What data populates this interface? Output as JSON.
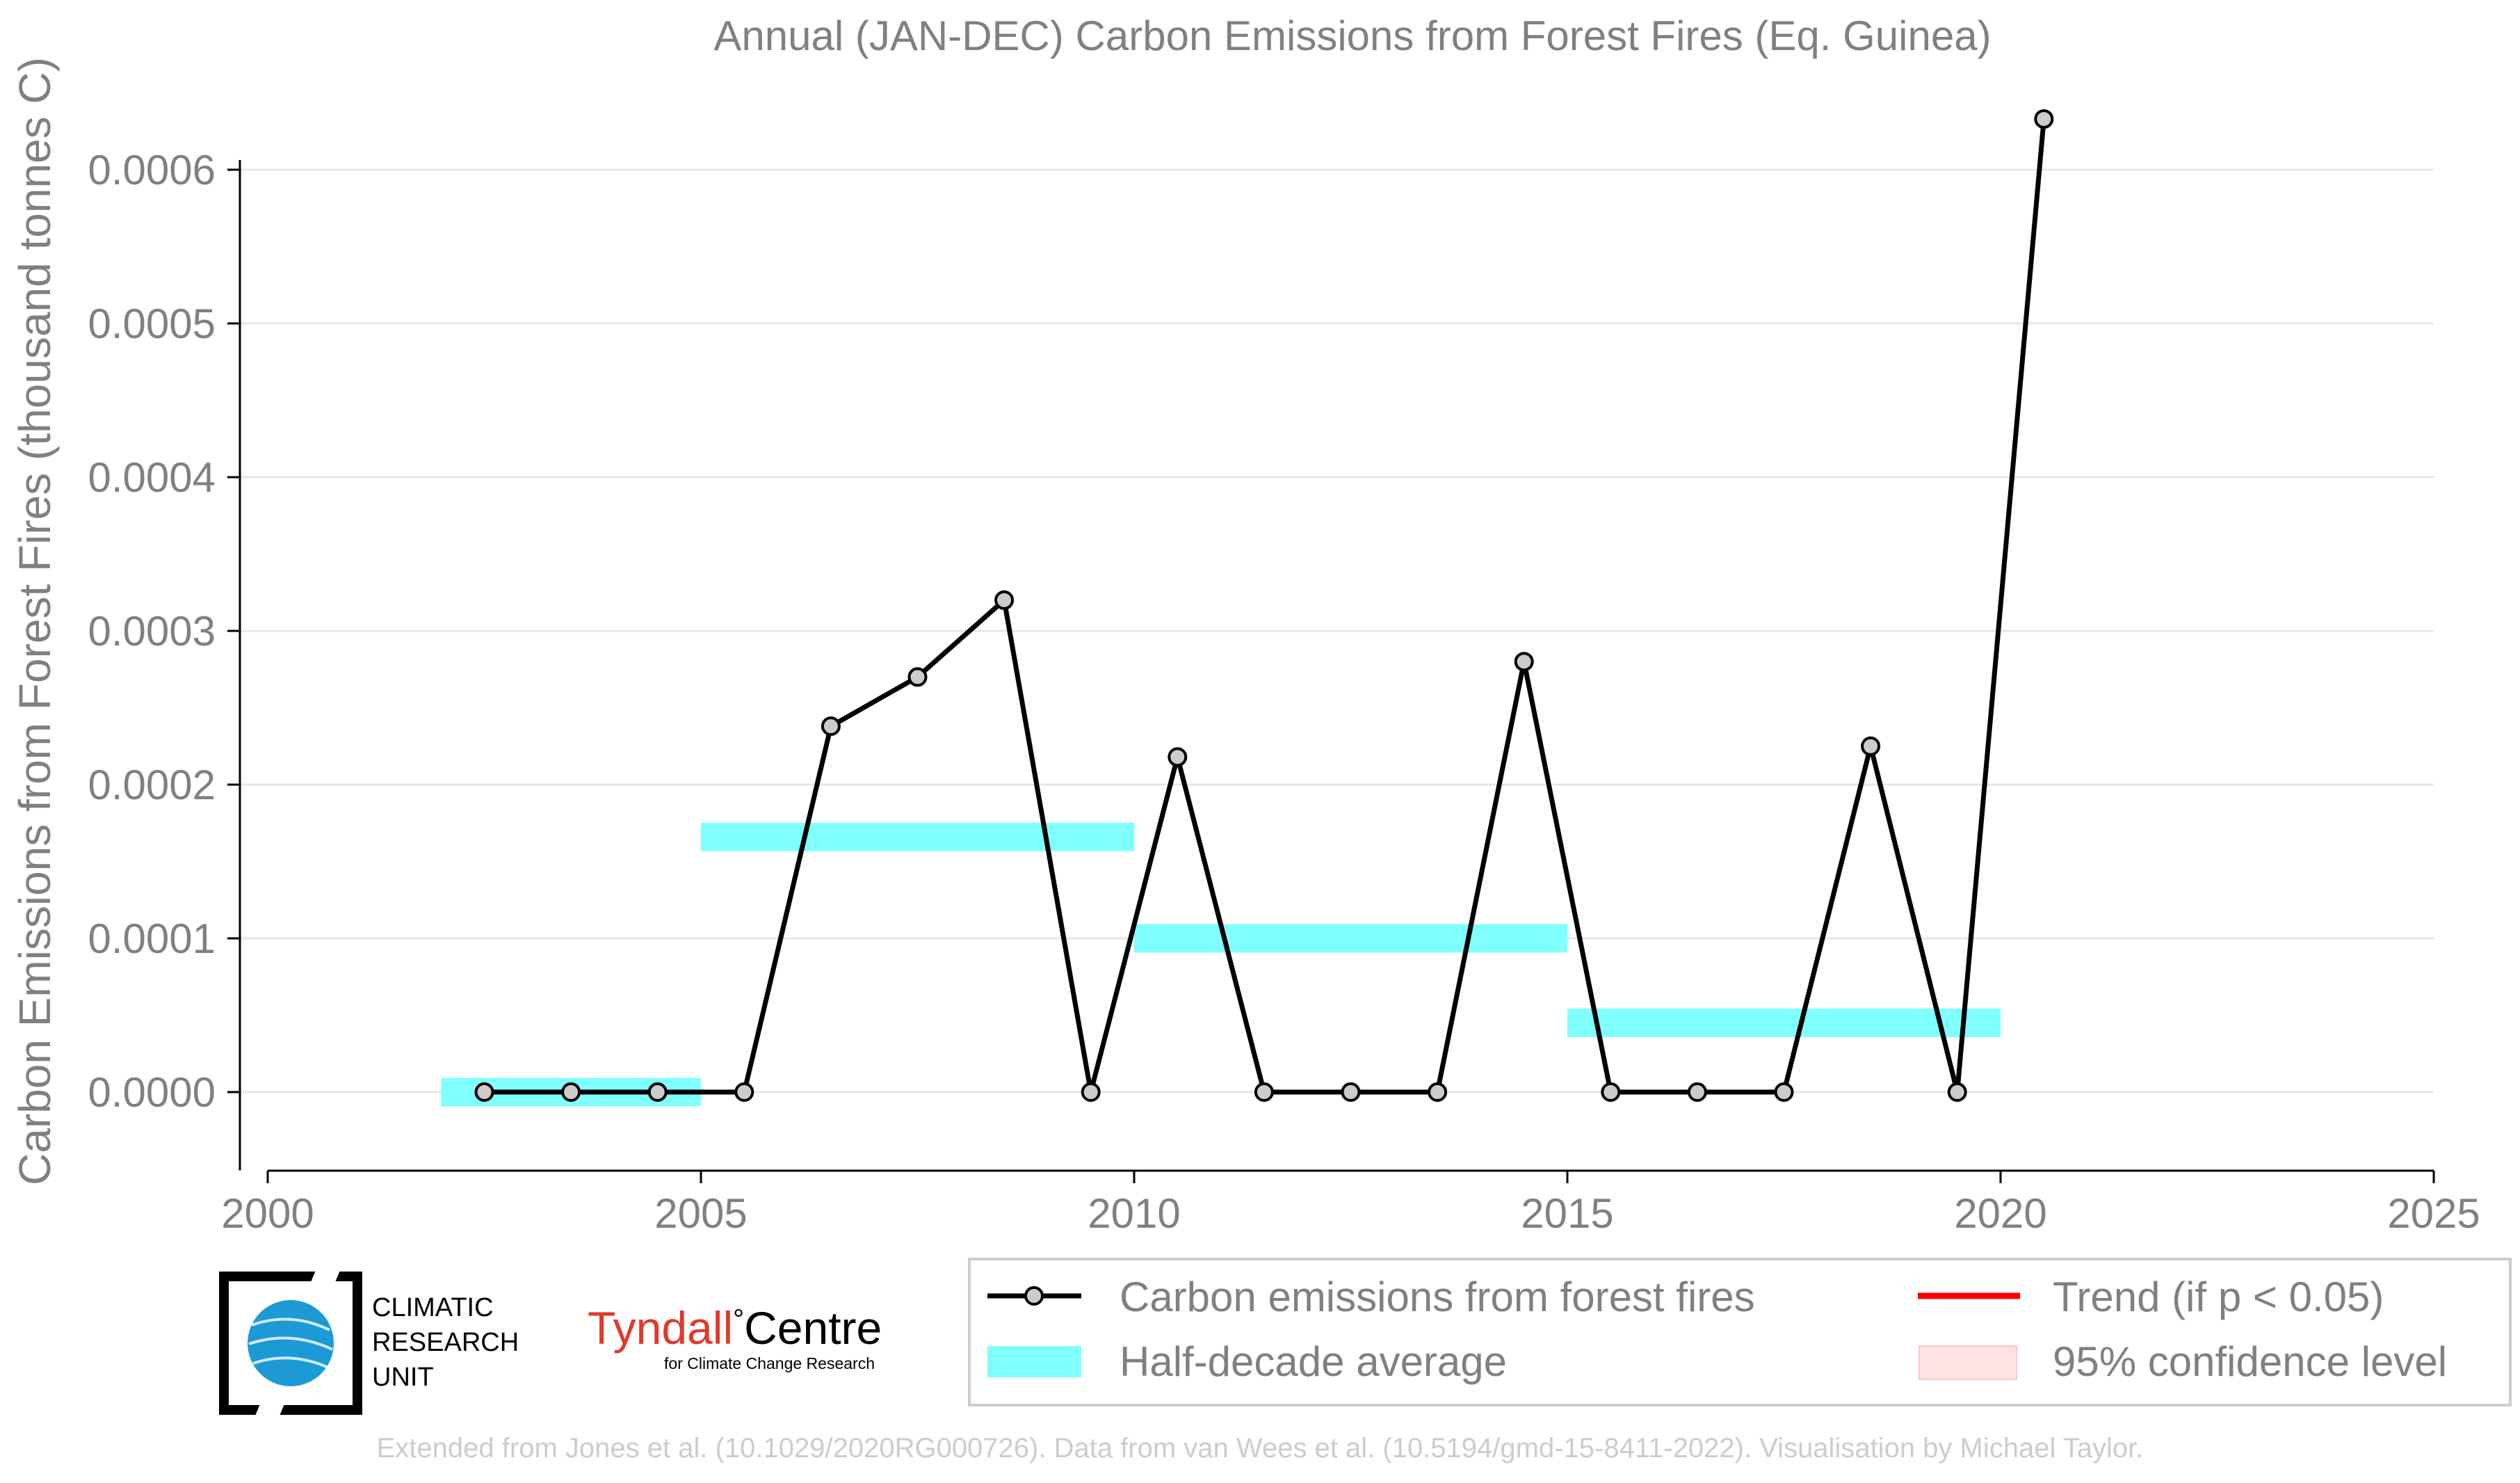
{
  "chart_data": {
    "type": "line",
    "title": "Annual (JAN-DEC) Carbon Emissions from Forest Fires (Eq. Guinea)",
    "xlabel": "",
    "ylabel": "Carbon Emissions from Forest Fires (thousand tonnes C)",
    "xlim": [
      2000,
      2025
    ],
    "ylim": [
      -5e-05,
      0.00066
    ],
    "x_ticks": [
      2000,
      2005,
      2010,
      2015,
      2020,
      2025
    ],
    "x_tick_labels": [
      "2000",
      "2005",
      "2010",
      "2015",
      "2020",
      "2025"
    ],
    "y_ticks": [
      0,
      0.0001,
      0.0002,
      0.0003,
      0.0004,
      0.0005,
      0.0006
    ],
    "y_tick_labels": [
      "0.0000",
      "0.0001",
      "0.0002",
      "0.0003",
      "0.0004",
      "0.0005",
      "0.0006"
    ],
    "grid": "horizontal",
    "series": [
      {
        "name": "Carbon emissions from forest fires",
        "color": "#000000",
        "marker_fill": "#cccccc",
        "x": [
          2002.5,
          2003.5,
          2004.5,
          2005.5,
          2006.5,
          2007.5,
          2008.5,
          2009.5,
          2010.5,
          2011.5,
          2012.5,
          2013.5,
          2014.5,
          2015.5,
          2016.5,
          2017.5,
          2018.5,
          2019.5,
          2020.5
        ],
        "values": [
          0,
          0,
          0,
          0,
          0.000238,
          0.00027,
          0.00032,
          0,
          0.000218,
          0,
          0,
          0,
          0.00028,
          0,
          0,
          0,
          0.000225,
          0,
          0.000633
        ]
      }
    ],
    "half_decade_average": {
      "name": "Half-decade average",
      "color": "#80ffff",
      "segments": [
        {
          "start": 2002,
          "end": 2005,
          "value": 0
        },
        {
          "start": 2005,
          "end": 2010,
          "value": 0.000166
        },
        {
          "start": 2010,
          "end": 2015,
          "value": 0.0001
        },
        {
          "start": 2015,
          "end": 2020,
          "value": 4.5e-05
        }
      ]
    },
    "legend": {
      "placement": "bottom-right",
      "entries": [
        {
          "label": "Carbon emissions from forest fires",
          "color": "#000000",
          "kind": "line-marker"
        },
        {
          "label": "Trend (if p < 0.05)",
          "color": "#ff0000",
          "kind": "line"
        },
        {
          "label": "Half-decade average",
          "color": "#80ffff",
          "kind": "patch"
        },
        {
          "label": "95% confidence level",
          "color": "#ffe0e3",
          "kind": "patch"
        }
      ]
    }
  },
  "logos": {
    "cru_line1": "CLIMATIC",
    "cru_line2": "RESEARCH",
    "cru_line3": "UNIT",
    "tyndall_red": "Tyndall",
    "tyndall_degree": "°",
    "tyndall_black": "Centre",
    "tyndall_sub": "for Climate Change Research"
  },
  "footer": {
    "credit": "Extended from Jones et al. (10.1029/2020RG000726). Data from van Wees et al. (10.5194/gmd-15-8411-2022). Visualisation by Michael Taylor."
  },
  "colors": {
    "text": "#808080",
    "grid": "#e6e6e6",
    "axis": "#000000",
    "footer": "#cccccc",
    "tyndall_red": "#e03a2a"
  }
}
